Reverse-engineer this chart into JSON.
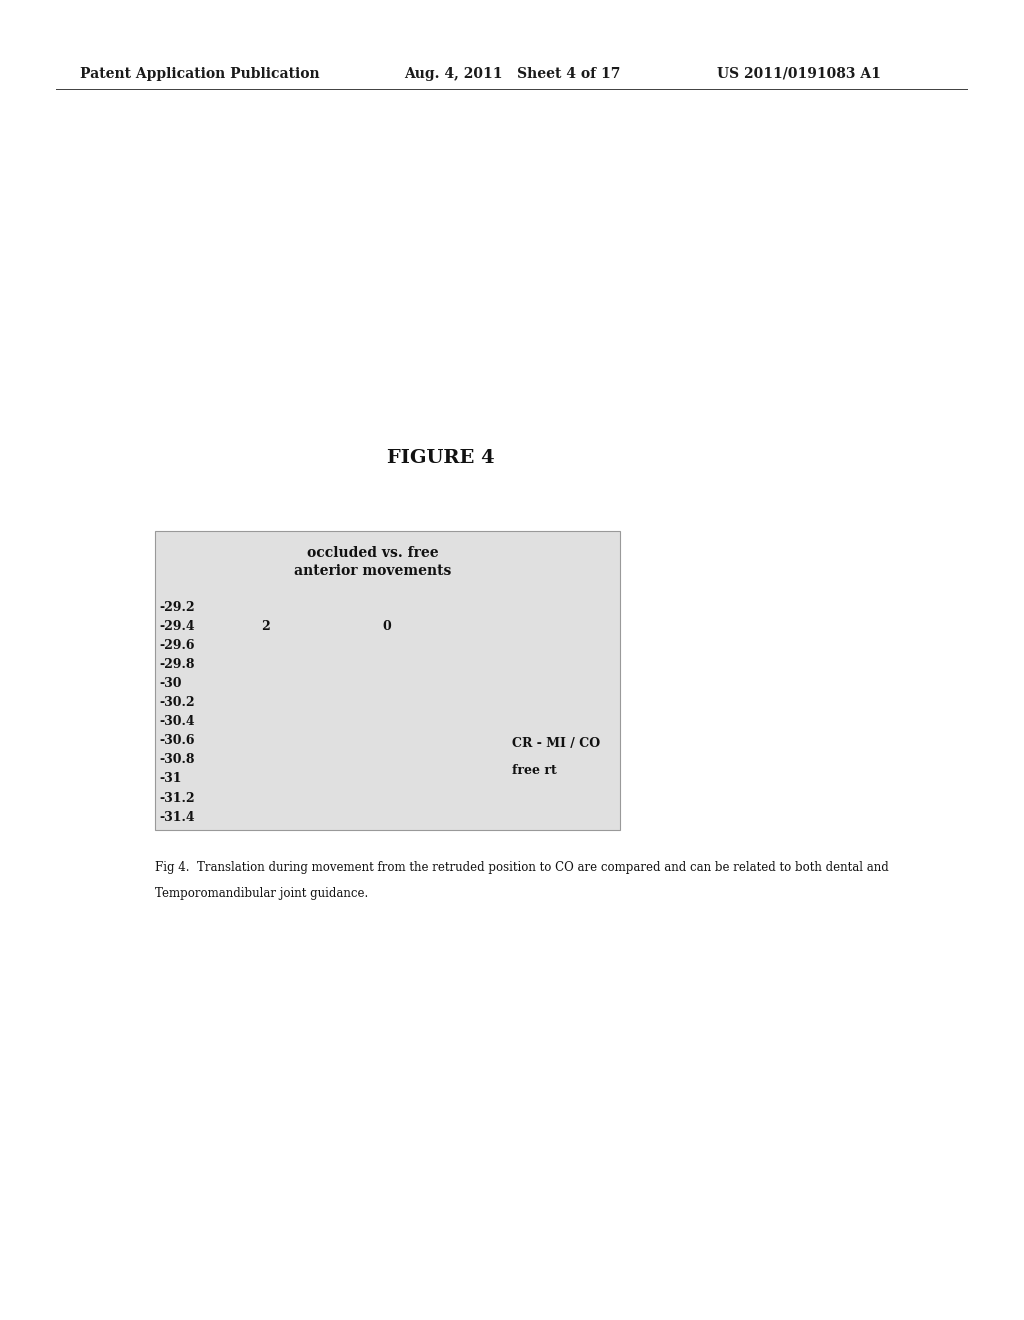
{
  "background_color": "#ffffff",
  "header_left": "Patent Application Publication",
  "header_center": "Aug. 4, 2011   Sheet 4 of 17",
  "header_right": "US 2011/0191083 A1",
  "figure_label": "FIGURE 4",
  "chart_title_line1": "occluded vs. free",
  "chart_title_line2": "anterior movements",
  "y_tick_labels": [
    "-29.2",
    "-29.4",
    "-29.6",
    "-29.8",
    "-30",
    "-30.2",
    "-30.4",
    "-30.6",
    "-30.8",
    "-31",
    "-31.2",
    "-31.4"
  ],
  "x_tick_label_2": "2",
  "x_tick_label_0": "0",
  "legend_line1": "CR - MI / CO",
  "legend_line2": "free rt",
  "caption_line1": "Fig 4.  Translation during movement from the retruded position to CO are compared and can be related to both dental and",
  "caption_line2": "Temporomandibular joint guidance.",
  "chart_bg_color": "#e0e0e0",
  "chart_border_color": "#999999",
  "header_fontsize": 10,
  "figure_label_fontsize": 14,
  "chart_title_fontsize": 10,
  "y_label_fontsize": 9,
  "x_label_fontsize": 9,
  "legend_fontsize": 9,
  "caption_fontsize": 8.5
}
